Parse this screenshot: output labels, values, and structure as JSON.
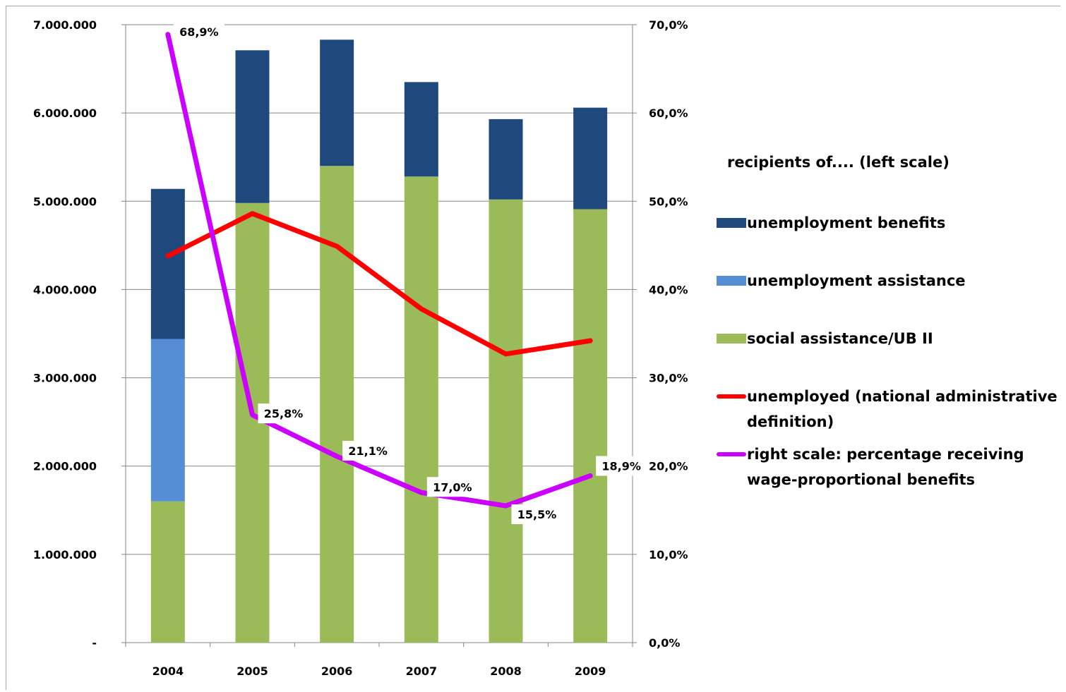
{
  "chart_data": {
    "type": "bar",
    "categories": [
      "2004",
      "2005",
      "2006",
      "2007",
      "2008",
      "2009"
    ],
    "left_axis": {
      "ylim": [
        0,
        7000000
      ],
      "ticks": [
        "-",
        "1.000.000",
        "2.000.000",
        "3.000.000",
        "4.000.000",
        "5.000.000",
        "6.000.000",
        "7.000.000"
      ]
    },
    "right_axis": {
      "ylim": [
        0,
        70
      ],
      "ticks": [
        "0,0%",
        "10,0%",
        "20,0%",
        "30,0%",
        "40,0%",
        "50,0%",
        "60,0%",
        "70,0%"
      ]
    },
    "series": [
      {
        "name": "social assistance/UB II",
        "kind": "bar",
        "axis": "left",
        "color": "#9bbb59",
        "values": [
          1600000,
          4980000,
          5400000,
          5280000,
          5020000,
          4910000
        ]
      },
      {
        "name": "unemployment assistance",
        "kind": "bar",
        "axis": "left",
        "color": "#558ed5",
        "values": [
          1840000,
          0,
          0,
          0,
          0,
          0
        ]
      },
      {
        "name": "unemployment benefits",
        "kind": "bar",
        "axis": "left",
        "color": "#1f497d",
        "values": [
          1700000,
          1730000,
          1430000,
          1070000,
          910000,
          1150000
        ]
      },
      {
        "name": "unemployed (national administrative definition)",
        "kind": "line",
        "axis": "left",
        "color": "#ff0000",
        "values": [
          4380000,
          4860000,
          4490000,
          3780000,
          3270000,
          3420000
        ]
      },
      {
        "name": "right scale: percentage receiving wage-proportional benefits",
        "kind": "line",
        "axis": "right",
        "color": "#cc00ff",
        "values": [
          68.9,
          25.8,
          21.1,
          17.0,
          15.5,
          18.9
        ],
        "labels": [
          "68,9%",
          "25,8%",
          "21,1%",
          "17,0%",
          "15,5%",
          "18,9%"
        ]
      }
    ],
    "legend": {
      "title": "recipients of.... (left scale)",
      "placement": "right",
      "items": [
        {
          "label": "unemployment benefits",
          "color": "#1f497d",
          "kind": "box"
        },
        {
          "label": "unemployment assistance",
          "color": "#558ed5",
          "kind": "box"
        },
        {
          "label": "social assistance/UB II",
          "color": "#9bbb59",
          "kind": "box"
        },
        {
          "label": "unemployed (national administrative definition)",
          "color": "#ff0000",
          "kind": "line"
        },
        {
          "label": "right scale: percentage receiving wage-proportional benefits",
          "color": "#cc00ff",
          "kind": "line"
        }
      ]
    },
    "grid": true
  }
}
